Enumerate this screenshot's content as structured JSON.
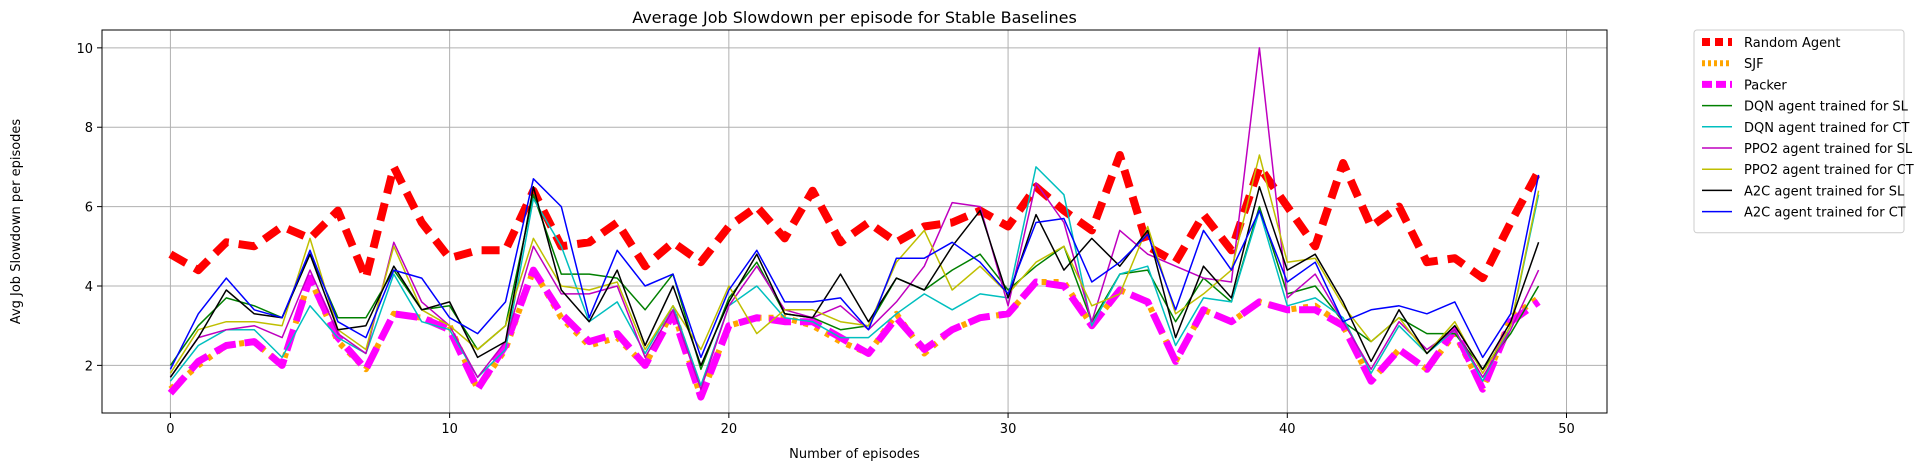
{
  "chart_data": {
    "type": "line",
    "title": "Average Job Slowdown per episode for Stable Baselines",
    "xlabel": "Number of episodes",
    "ylabel": "Avg Job Slowdown per episodes",
    "xlim": [
      -2.45,
      51.45
    ],
    "ylim": [
      0.8,
      10.45
    ],
    "xticks": [
      0,
      10,
      20,
      30,
      40,
      50
    ],
    "yticks": [
      2,
      4,
      6,
      8,
      10
    ],
    "grid": true,
    "legend_position": "outside-right",
    "x": [
      0,
      1,
      2,
      3,
      4,
      5,
      6,
      7,
      8,
      9,
      10,
      11,
      12,
      13,
      14,
      15,
      16,
      17,
      18,
      19,
      20,
      21,
      22,
      23,
      24,
      25,
      26,
      27,
      28,
      29,
      30,
      31,
      32,
      33,
      34,
      35,
      36,
      37,
      38,
      39,
      40,
      41,
      42,
      43,
      44,
      45,
      46,
      47,
      48,
      49
    ],
    "series": [
      {
        "name": "Random Agent",
        "color": "#ff0000",
        "width": 8,
        "dash": "18,10",
        "values": [
          4.8,
          4.4,
          5.1,
          5.0,
          5.5,
          5.2,
          5.9,
          4.2,
          7.0,
          5.6,
          4.7,
          4.9,
          4.9,
          6.4,
          5.0,
          5.1,
          5.6,
          4.5,
          5.1,
          4.6,
          5.5,
          6.0,
          5.2,
          6.4,
          5.1,
          5.6,
          5.1,
          5.5,
          5.6,
          5.9,
          5.5,
          6.5,
          5.9,
          5.4,
          7.3,
          5.0,
          4.6,
          5.8,
          4.9,
          7.0,
          6.0,
          5.0,
          7.1,
          5.5,
          6.0,
          4.6,
          4.7,
          4.2,
          5.6,
          6.9
        ]
      },
      {
        "name": "SJF",
        "color": "#ffa500",
        "width": 6,
        "dash": "5,7",
        "values": [
          1.4,
          2.0,
          2.5,
          2.6,
          2.0,
          4.2,
          2.6,
          1.9,
          3.3,
          3.2,
          3.0,
          1.4,
          2.4,
          4.4,
          3.2,
          2.5,
          2.7,
          2.0,
          3.4,
          1.2,
          3.0,
          3.2,
          3.2,
          3.0,
          2.6,
          2.3,
          3.3,
          2.3,
          2.9,
          3.2,
          3.3,
          4.1,
          4.1,
          3.0,
          3.9,
          3.6,
          2.1,
          3.4,
          3.1,
          3.6,
          3.4,
          3.5,
          3.0,
          1.6,
          2.4,
          1.9,
          2.8,
          1.4,
          3.2,
          3.7
        ]
      },
      {
        "name": "Packer",
        "color": "#ff00ff",
        "width": 7,
        "dash": "22,9",
        "values": [
          1.3,
          2.1,
          2.5,
          2.6,
          2.0,
          4.2,
          2.7,
          1.9,
          3.3,
          3.2,
          2.9,
          1.4,
          2.5,
          4.4,
          3.3,
          2.6,
          2.8,
          2.0,
          3.3,
          1.2,
          3.0,
          3.2,
          3.1,
          3.1,
          2.7,
          2.3,
          3.2,
          2.4,
          2.9,
          3.2,
          3.3,
          4.1,
          4.0,
          3.0,
          3.9,
          3.6,
          2.1,
          3.4,
          3.1,
          3.6,
          3.4,
          3.4,
          3.0,
          1.6,
          2.4,
          1.9,
          2.9,
          1.4,
          3.1,
          3.6
        ]
      },
      {
        "name": "DQN agent trained for SL",
        "color": "#008000",
        "width": 1.5,
        "dash": "",
        "values": [
          2.0,
          3.0,
          3.7,
          3.5,
          3.2,
          4.8,
          3.2,
          3.2,
          4.4,
          3.4,
          3.5,
          2.4,
          3.0,
          6.3,
          4.3,
          4.3,
          4.2,
          3.4,
          4.3,
          1.9,
          3.7,
          4.6,
          3.3,
          3.2,
          2.9,
          3.0,
          4.2,
          3.9,
          4.4,
          4.8,
          3.9,
          4.5,
          5.0,
          3.1,
          4.3,
          4.4,
          3.1,
          4.2,
          3.6,
          6.0,
          3.8,
          4.0,
          3.1,
          2.6,
          3.2,
          2.8,
          2.8,
          1.9,
          2.8,
          4.0
        ]
      },
      {
        "name": "DQN agent trained for CT",
        "color": "#00bfbf",
        "width": 1.5,
        "dash": "",
        "values": [
          1.6,
          2.5,
          2.9,
          2.9,
          2.2,
          3.5,
          2.7,
          2.3,
          4.3,
          3.1,
          2.9,
          1.7,
          2.4,
          6.2,
          5.0,
          3.1,
          3.6,
          2.3,
          3.5,
          1.5,
          3.5,
          4.0,
          3.2,
          3.1,
          2.7,
          2.7,
          3.3,
          3.8,
          3.4,
          3.8,
          3.7,
          7.0,
          6.3,
          3.0,
          4.3,
          4.5,
          2.5,
          3.7,
          3.6,
          5.9,
          3.5,
          3.7,
          3.2,
          1.8,
          3.0,
          2.3,
          2.9,
          1.6,
          3.0,
          6.3
        ]
      },
      {
        "name": "PPO2 agent trained for SL",
        "color": "#bf00bf",
        "width": 1.5,
        "dash": "",
        "values": [
          1.7,
          2.7,
          2.9,
          3.0,
          2.7,
          4.4,
          2.8,
          2.3,
          5.1,
          3.6,
          3.0,
          1.7,
          2.6,
          5.0,
          3.8,
          3.8,
          4.0,
          2.2,
          3.4,
          1.4,
          3.5,
          4.5,
          3.4,
          3.2,
          3.5,
          2.9,
          3.6,
          4.5,
          6.1,
          6.0,
          3.5,
          6.6,
          5.6,
          3.1,
          5.4,
          4.8,
          4.5,
          4.2,
          4.1,
          10.0,
          3.7,
          4.3,
          3.1,
          1.9,
          3.1,
          2.4,
          2.9,
          1.7,
          2.9,
          4.4
        ]
      },
      {
        "name": "PPO2 agent trained for CT",
        "color": "#bfbf00",
        "width": 1.5,
        "dash": "",
        "values": [
          1.8,
          2.9,
          3.1,
          3.1,
          3.0,
          5.2,
          2.9,
          2.4,
          5.0,
          3.4,
          3.0,
          2.4,
          3.0,
          5.2,
          4.0,
          3.9,
          4.1,
          2.4,
          3.5,
          2.4,
          4.0,
          2.8,
          3.4,
          3.4,
          3.1,
          3.0,
          4.6,
          5.4,
          3.9,
          4.5,
          3.8,
          4.6,
          5.0,
          3.5,
          3.8,
          5.5,
          3.3,
          3.8,
          4.4,
          7.3,
          4.6,
          4.7,
          3.5,
          2.6,
          3.2,
          2.3,
          3.1,
          1.8,
          3.0,
          6.4
        ]
      },
      {
        "name": "A2C agent trained for SL",
        "color": "#000000",
        "width": 1.5,
        "dash": "",
        "values": [
          1.7,
          2.7,
          3.9,
          3.3,
          3.2,
          4.8,
          2.9,
          3.0,
          4.5,
          3.4,
          3.6,
          2.2,
          2.6,
          6.5,
          3.9,
          3.1,
          4.4,
          2.5,
          4.0,
          2.0,
          3.6,
          4.8,
          3.3,
          3.2,
          4.3,
          3.1,
          4.2,
          3.9,
          5.0,
          5.9,
          3.7,
          5.8,
          4.4,
          5.2,
          4.5,
          5.4,
          2.7,
          4.5,
          3.7,
          6.5,
          4.4,
          4.8,
          3.6,
          2.1,
          3.4,
          2.3,
          3.0,
          1.9,
          3.1,
          5.1
        ]
      },
      {
        "name": "A2C agent trained for CT",
        "color": "#0000ff",
        "width": 1.5,
        "dash": "",
        "values": [
          1.9,
          3.3,
          4.2,
          3.4,
          3.2,
          4.9,
          3.1,
          2.7,
          4.4,
          4.2,
          3.2,
          2.8,
          3.6,
          6.7,
          6.0,
          3.2,
          4.9,
          4.0,
          4.3,
          2.2,
          3.9,
          4.9,
          3.6,
          3.6,
          3.7,
          2.9,
          4.7,
          4.7,
          5.1,
          4.6,
          3.8,
          5.6,
          5.7,
          4.1,
          4.6,
          5.3,
          3.4,
          5.4,
          4.4,
          5.9,
          4.1,
          4.6,
          3.1,
          3.4,
          3.5,
          3.3,
          3.6,
          2.2,
          3.3,
          6.8
        ]
      }
    ]
  }
}
